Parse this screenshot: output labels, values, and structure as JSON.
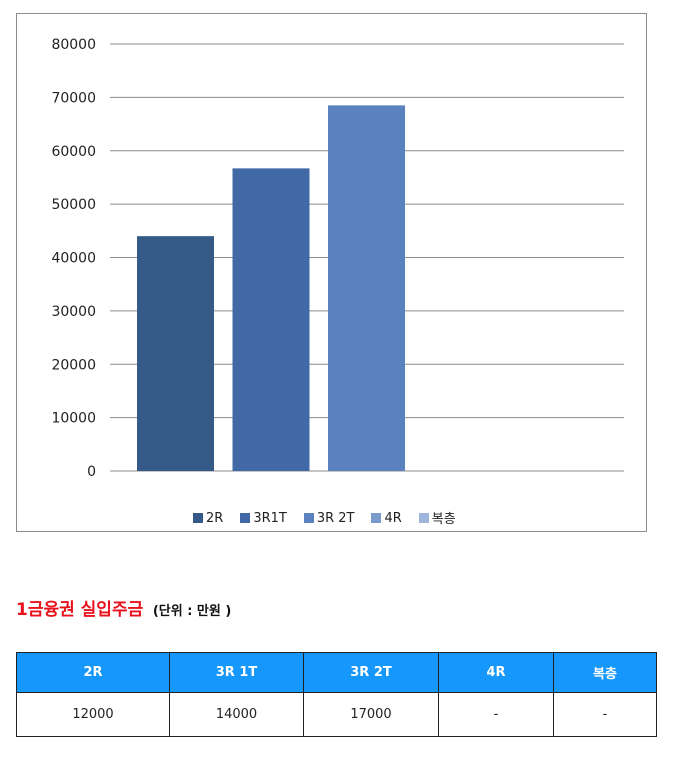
{
  "chart_data": {
    "type": "bar",
    "categories": [
      "2R",
      "3R1T",
      "3R 2T",
      "4R",
      "복층"
    ],
    "values": [
      44000,
      56700,
      68500,
      null,
      null
    ],
    "colors": [
      "#355a87",
      "#4169a6",
      "#5a82be",
      "#7b9bcf",
      "#9db4db"
    ],
    "ylim": [
      0,
      80000
    ],
    "yticks": [
      "0",
      "10000",
      "20000",
      "30000",
      "40000",
      "50000",
      "60000",
      "70000",
      "80000"
    ],
    "grid": true,
    "legend_position": "bottom"
  },
  "section": {
    "title": "1금융권 실입주금",
    "unit": "(단위 : 만원 )"
  },
  "table": {
    "headers": [
      "2R",
      "3R 1T",
      "3R 2T",
      "4R",
      "복층"
    ],
    "rows": [
      [
        "12000",
        "14000",
        "17000",
        "-",
        "-"
      ]
    ]
  }
}
